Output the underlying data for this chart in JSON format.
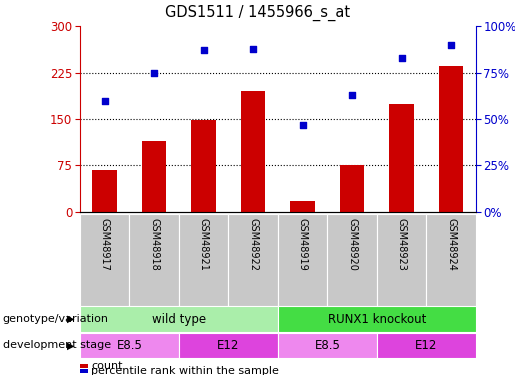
{
  "title": "GDS1511 / 1455966_s_at",
  "samples": [
    "GSM48917",
    "GSM48918",
    "GSM48921",
    "GSM48922",
    "GSM48919",
    "GSM48920",
    "GSM48923",
    "GSM48924"
  ],
  "counts": [
    68,
    115,
    148,
    195,
    18,
    75,
    175,
    235
  ],
  "percentiles": [
    60,
    75,
    87,
    88,
    47,
    63,
    83,
    90
  ],
  "ylim_left": [
    0,
    300
  ],
  "ylim_right": [
    0,
    100
  ],
  "yticks_left": [
    0,
    75,
    150,
    225,
    300
  ],
  "yticks_right": [
    0,
    25,
    50,
    75,
    100
  ],
  "bar_color": "#cc0000",
  "scatter_color": "#0000cc",
  "genotype_groups": [
    {
      "label": "wild type",
      "start": 0,
      "end": 4,
      "color": "#aaeea a"
    },
    {
      "label": "RUNX1 knockout",
      "start": 4,
      "end": 8,
      "color": "#44dd44"
    }
  ],
  "stage_groups": [
    {
      "label": "E8.5",
      "start": 0,
      "end": 2,
      "color": "#ee88ee"
    },
    {
      "label": "E12",
      "start": 2,
      "end": 4,
      "color": "#dd44dd"
    },
    {
      "label": "E8.5",
      "start": 4,
      "end": 6,
      "color": "#ee88ee"
    },
    {
      "label": "E12",
      "start": 6,
      "end": 8,
      "color": "#dd44dd"
    }
  ],
  "label_genotype": "genotype/variation",
  "label_stage": "development stage",
  "legend_count": "count",
  "legend_pct": "percentile rank within the sample",
  "tick_color_left": "#cc0000",
  "tick_color_right": "#0000cc",
  "sample_box_color": "#c8c8c8",
  "figure_bg": "#ffffff"
}
